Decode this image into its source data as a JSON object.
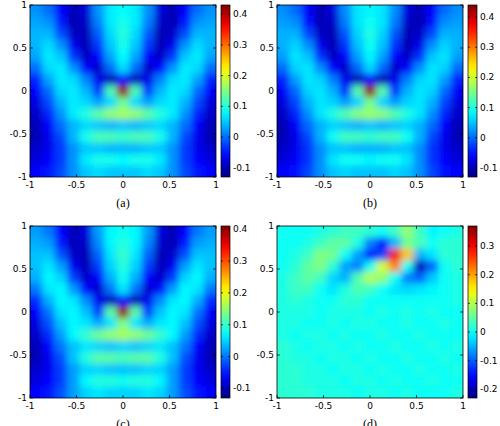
{
  "chart_data": [
    {
      "type": "heatmap",
      "title": "(a)",
      "xlim": [
        -1,
        1
      ],
      "ylim": [
        -1,
        1
      ],
      "xticks": [
        -1,
        -0.5,
        0,
        0.5,
        1
      ],
      "yticks": [
        -1,
        -0.5,
        0,
        0.5,
        1
      ],
      "colorbar": {
        "lim": [
          -0.13,
          0.43
        ],
        "ticks": [
          -0.1,
          0,
          0.1,
          0.2,
          0.3,
          0.4
        ]
      },
      "cells": [
        [
          0.02,
          0.0,
          -0.06,
          -0.1,
          -0.08,
          0.02,
          0.07,
          0.08,
          0.07,
          0.02,
          -0.08,
          -0.1,
          -0.06,
          0.0,
          0.02
        ],
        [
          0.03,
          0.02,
          -0.05,
          -0.1,
          -0.09,
          0.01,
          0.07,
          0.09,
          0.07,
          0.01,
          -0.09,
          -0.1,
          -0.05,
          0.02,
          0.03
        ],
        [
          0.04,
          0.04,
          -0.02,
          -0.09,
          -0.1,
          -0.01,
          0.06,
          0.1,
          0.06,
          -0.01,
          -0.1,
          -0.09,
          -0.02,
          0.04,
          0.04
        ],
        [
          0.04,
          0.06,
          0.02,
          -0.07,
          -0.1,
          -0.03,
          0.05,
          0.09,
          0.05,
          -0.03,
          -0.1,
          -0.07,
          0.02,
          0.06,
          0.04
        ],
        [
          0.03,
          0.07,
          0.05,
          -0.03,
          -0.09,
          -0.06,
          0.03,
          0.08,
          0.03,
          -0.06,
          -0.09,
          -0.03,
          0.05,
          0.07,
          0.03
        ],
        [
          0.0,
          0.06,
          0.07,
          0.02,
          -0.06,
          -0.09,
          0.0,
          0.06,
          0.0,
          -0.09,
          -0.06,
          0.02,
          0.07,
          0.06,
          0.0
        ],
        [
          -0.04,
          0.03,
          0.07,
          0.06,
          0.01,
          -0.07,
          -0.1,
          -0.06,
          -0.1,
          -0.07,
          0.01,
          0.06,
          0.07,
          0.03,
          -0.04
        ],
        [
          -0.06,
          0.0,
          0.06,
          0.07,
          0.04,
          -0.03,
          0.12,
          0.42,
          0.12,
          -0.03,
          0.04,
          0.07,
          0.06,
          0.0,
          -0.06
        ],
        [
          -0.08,
          -0.02,
          0.04,
          0.07,
          0.06,
          0.03,
          0.06,
          0.14,
          0.06,
          0.03,
          0.06,
          0.07,
          0.04,
          -0.02,
          -0.08
        ],
        [
          -0.09,
          -0.04,
          0.02,
          0.07,
          0.1,
          0.13,
          0.16,
          0.17,
          0.16,
          0.13,
          0.1,
          0.07,
          0.02,
          -0.04,
          -0.09
        ],
        [
          -0.1,
          -0.06,
          0.0,
          0.04,
          0.06,
          0.05,
          0.04,
          0.05,
          0.04,
          0.05,
          0.06,
          0.04,
          0.0,
          -0.06,
          -0.1
        ],
        [
          -0.1,
          -0.07,
          -0.02,
          0.04,
          0.09,
          0.12,
          0.12,
          0.11,
          0.12,
          0.12,
          0.09,
          0.04,
          -0.02,
          -0.07,
          -0.1
        ],
        [
          -0.09,
          -0.07,
          -0.03,
          0.02,
          0.05,
          0.05,
          0.04,
          0.04,
          0.04,
          0.05,
          0.05,
          0.02,
          -0.03,
          -0.07,
          -0.09
        ],
        [
          -0.08,
          -0.06,
          -0.03,
          0.02,
          0.07,
          0.09,
          0.09,
          0.08,
          0.09,
          0.09,
          0.07,
          0.02,
          -0.03,
          -0.06,
          -0.08
        ],
        [
          -0.06,
          -0.05,
          -0.02,
          0.02,
          0.05,
          0.06,
          0.05,
          0.05,
          0.05,
          0.06,
          0.05,
          0.02,
          -0.02,
          -0.05,
          -0.06
        ]
      ]
    },
    {
      "type": "heatmap",
      "title": "(b)",
      "xlim": [
        -1,
        1
      ],
      "ylim": [
        -1,
        1
      ],
      "xticks": [
        -1,
        -0.5,
        0,
        0.5,
        1
      ],
      "yticks": [
        -1,
        -0.5,
        0,
        0.5,
        1
      ],
      "colorbar": {
        "lim": [
          -0.13,
          0.44
        ],
        "ticks": [
          -0.1,
          0,
          0.1,
          0.2,
          0.3,
          0.4
        ]
      },
      "cells": [
        [
          0.02,
          0.0,
          -0.06,
          -0.1,
          -0.08,
          0.02,
          0.07,
          0.08,
          0.07,
          0.02,
          -0.08,
          -0.1,
          -0.06,
          0.0,
          0.02
        ],
        [
          0.03,
          0.02,
          -0.05,
          -0.1,
          -0.09,
          0.01,
          0.07,
          0.09,
          0.07,
          0.01,
          -0.09,
          -0.1,
          -0.05,
          0.02,
          0.03
        ],
        [
          0.04,
          0.04,
          -0.02,
          -0.09,
          -0.1,
          -0.01,
          0.06,
          0.1,
          0.06,
          -0.01,
          -0.1,
          -0.09,
          -0.02,
          0.04,
          0.04
        ],
        [
          0.04,
          0.06,
          0.02,
          -0.07,
          -0.1,
          -0.03,
          0.05,
          0.09,
          0.05,
          -0.03,
          -0.1,
          -0.07,
          0.02,
          0.06,
          0.04
        ],
        [
          0.03,
          0.07,
          0.05,
          -0.03,
          -0.09,
          -0.06,
          0.03,
          0.08,
          0.03,
          -0.06,
          -0.09,
          -0.03,
          0.05,
          0.07,
          0.03
        ],
        [
          0.0,
          0.06,
          0.07,
          0.02,
          -0.06,
          -0.09,
          0.0,
          0.06,
          0.0,
          -0.09,
          -0.06,
          0.02,
          0.07,
          0.06,
          0.0
        ],
        [
          -0.04,
          0.03,
          0.07,
          0.06,
          0.01,
          -0.07,
          -0.1,
          -0.06,
          -0.1,
          -0.07,
          0.01,
          0.06,
          0.07,
          0.03,
          -0.04
        ],
        [
          -0.06,
          0.0,
          0.06,
          0.07,
          0.04,
          -0.03,
          0.13,
          0.43,
          0.13,
          -0.03,
          0.04,
          0.07,
          0.06,
          0.0,
          -0.06
        ],
        [
          -0.08,
          -0.02,
          0.04,
          0.07,
          0.06,
          0.03,
          0.06,
          0.15,
          0.06,
          0.03,
          0.06,
          0.07,
          0.04,
          -0.02,
          -0.08
        ],
        [
          -0.09,
          -0.04,
          0.02,
          0.07,
          0.1,
          0.13,
          0.16,
          0.17,
          0.16,
          0.13,
          0.1,
          0.07,
          0.02,
          -0.04,
          -0.09
        ],
        [
          -0.1,
          -0.06,
          0.0,
          0.04,
          0.06,
          0.05,
          0.04,
          0.05,
          0.04,
          0.05,
          0.06,
          0.04,
          0.0,
          -0.06,
          -0.1
        ],
        [
          -0.1,
          -0.07,
          -0.02,
          0.04,
          0.09,
          0.12,
          0.12,
          0.11,
          0.12,
          0.12,
          0.09,
          0.04,
          -0.02,
          -0.07,
          -0.1
        ],
        [
          -0.09,
          -0.07,
          -0.03,
          0.02,
          0.05,
          0.05,
          0.04,
          0.04,
          0.04,
          0.05,
          0.05,
          0.02,
          -0.03,
          -0.07,
          -0.09
        ],
        [
          -0.08,
          -0.06,
          -0.03,
          0.02,
          0.07,
          0.09,
          0.09,
          0.08,
          0.09,
          0.09,
          0.07,
          0.02,
          -0.03,
          -0.06,
          -0.08
        ],
        [
          -0.06,
          -0.05,
          -0.02,
          0.02,
          0.05,
          0.06,
          0.05,
          0.05,
          0.05,
          0.06,
          0.05,
          0.02,
          -0.02,
          -0.05,
          -0.06
        ]
      ]
    },
    {
      "type": "heatmap",
      "title": "(c)",
      "xlim": [
        -1,
        1
      ],
      "ylim": [
        -1,
        1
      ],
      "xticks": [
        -1,
        -0.5,
        0,
        0.5,
        1
      ],
      "yticks": [
        -1,
        -0.5,
        0,
        0.5,
        1
      ],
      "colorbar": {
        "lim": [
          -0.13,
          0.41
        ],
        "ticks": [
          -0.1,
          0,
          0.1,
          0.2,
          0.3,
          0.4
        ]
      },
      "cells": [
        [
          0.02,
          0.0,
          -0.06,
          -0.1,
          -0.08,
          0.02,
          0.07,
          0.08,
          0.07,
          0.02,
          -0.08,
          -0.1,
          -0.06,
          0.0,
          0.02
        ],
        [
          0.03,
          0.02,
          -0.05,
          -0.1,
          -0.09,
          0.01,
          0.07,
          0.09,
          0.07,
          0.01,
          -0.09,
          -0.1,
          -0.05,
          0.02,
          0.03
        ],
        [
          0.04,
          0.04,
          -0.02,
          -0.09,
          -0.1,
          -0.01,
          0.06,
          0.1,
          0.06,
          -0.01,
          -0.1,
          -0.09,
          -0.02,
          0.04,
          0.04
        ],
        [
          0.04,
          0.06,
          0.02,
          -0.07,
          -0.1,
          -0.03,
          0.05,
          0.09,
          0.05,
          -0.03,
          -0.1,
          -0.07,
          0.02,
          0.06,
          0.04
        ],
        [
          0.03,
          0.07,
          0.05,
          -0.03,
          -0.09,
          -0.06,
          0.03,
          0.08,
          0.03,
          -0.06,
          -0.09,
          -0.03,
          0.05,
          0.07,
          0.03
        ],
        [
          0.0,
          0.06,
          0.07,
          0.02,
          -0.06,
          -0.09,
          0.0,
          0.06,
          0.0,
          -0.09,
          -0.06,
          0.02,
          0.07,
          0.06,
          0.0
        ],
        [
          -0.04,
          0.03,
          0.07,
          0.06,
          0.01,
          -0.07,
          -0.1,
          -0.06,
          -0.1,
          -0.07,
          0.01,
          0.06,
          0.07,
          0.03,
          -0.04
        ],
        [
          -0.06,
          0.0,
          0.06,
          0.07,
          0.04,
          -0.03,
          0.12,
          0.4,
          0.12,
          -0.03,
          0.04,
          0.07,
          0.06,
          0.0,
          -0.06
        ],
        [
          -0.08,
          -0.02,
          0.04,
          0.07,
          0.06,
          0.03,
          0.06,
          0.14,
          0.06,
          0.03,
          0.06,
          0.07,
          0.04,
          -0.02,
          -0.08
        ],
        [
          -0.09,
          -0.04,
          0.02,
          0.07,
          0.1,
          0.13,
          0.15,
          0.16,
          0.15,
          0.13,
          0.1,
          0.07,
          0.02,
          -0.04,
          -0.09
        ],
        [
          -0.1,
          -0.06,
          0.0,
          0.04,
          0.06,
          0.05,
          0.04,
          0.05,
          0.04,
          0.05,
          0.06,
          0.04,
          0.0,
          -0.06,
          -0.1
        ],
        [
          -0.1,
          -0.07,
          -0.02,
          0.04,
          0.09,
          0.12,
          0.12,
          0.11,
          0.12,
          0.12,
          0.09,
          0.04,
          -0.02,
          -0.07,
          -0.1
        ],
        [
          -0.09,
          -0.07,
          -0.03,
          0.02,
          0.05,
          0.05,
          0.04,
          0.04,
          0.04,
          0.05,
          0.05,
          0.02,
          -0.03,
          -0.07,
          -0.09
        ],
        [
          -0.08,
          -0.06,
          -0.03,
          0.02,
          0.07,
          0.09,
          0.09,
          0.08,
          0.09,
          0.09,
          0.07,
          0.02,
          -0.03,
          -0.06,
          -0.08
        ],
        [
          -0.06,
          -0.05,
          -0.02,
          0.02,
          0.05,
          0.06,
          0.05,
          0.05,
          0.05,
          0.06,
          0.05,
          0.02,
          -0.02,
          -0.05,
          -0.06
        ]
      ]
    },
    {
      "type": "heatmap",
      "title": "(d)",
      "xlim": [
        -1,
        1
      ],
      "ylim": [
        -1,
        1
      ],
      "xticks": [
        -1,
        -0.5,
        0,
        0.5,
        1
      ],
      "yticks": [
        -1,
        -0.5,
        0,
        0.5,
        1
      ],
      "colorbar": {
        "lim": [
          -0.23,
          0.37
        ],
        "ticks": [
          -0.2,
          -0.1,
          0,
          0.1,
          0.2,
          0.3
        ]
      },
      "cells": [
        [
          0.0,
          0.0,
          0.0,
          0.01,
          0.02,
          0.03,
          0.03,
          0.02,
          0.0,
          0.03,
          0.08,
          0.03,
          -0.01,
          0.0,
          0.01
        ],
        [
          0.0,
          0.0,
          0.01,
          0.03,
          0.05,
          0.05,
          0.01,
          -0.08,
          -0.15,
          -0.05,
          0.06,
          0.04,
          0.0,
          0.02,
          0.02
        ],
        [
          0.0,
          0.01,
          0.03,
          0.07,
          0.06,
          0.0,
          -0.06,
          -0.15,
          -0.12,
          0.3,
          0.18,
          -0.05,
          -0.02,
          0.02,
          0.02
        ],
        [
          0.0,
          0.02,
          0.05,
          0.07,
          0.02,
          -0.06,
          -0.08,
          0.0,
          0.12,
          0.22,
          0.0,
          -0.2,
          -0.1,
          0.0,
          0.02
        ],
        [
          0.01,
          0.03,
          0.05,
          0.03,
          -0.03,
          -0.05,
          0.04,
          0.1,
          0.08,
          0.0,
          -0.08,
          -0.1,
          -0.04,
          0.0,
          0.01
        ],
        [
          0.01,
          0.03,
          0.03,
          0.0,
          -0.02,
          0.01,
          0.04,
          0.03,
          0.0,
          -0.02,
          -0.03,
          -0.02,
          -0.01,
          0.0,
          0.01
        ],
        [
          0.01,
          0.02,
          0.01,
          0.0,
          0.0,
          0.02,
          0.02,
          0.0,
          0.0,
          0.0,
          0.0,
          0.0,
          0.0,
          0.0,
          0.01
        ],
        [
          0.01,
          0.01,
          0.01,
          0.0,
          0.01,
          0.01,
          0.01,
          0.0,
          0.01,
          0.0,
          0.01,
          0.0,
          0.01,
          0.0,
          0.0
        ],
        [
          0.01,
          0.01,
          0.0,
          0.0,
          0.01,
          0.0,
          0.01,
          0.01,
          0.0,
          0.0,
          0.01,
          0.0,
          0.0,
          0.01,
          0.0
        ],
        [
          0.01,
          0.0,
          0.01,
          0.01,
          0.0,
          0.01,
          0.0,
          0.0,
          0.01,
          0.0,
          0.0,
          0.01,
          0.0,
          0.0,
          0.0
        ],
        [
          0.02,
          0.01,
          0.0,
          0.01,
          0.01,
          0.0,
          0.01,
          0.0,
          0.0,
          0.01,
          0.0,
          0.0,
          0.01,
          0.0,
          0.01
        ],
        [
          0.02,
          0.01,
          0.01,
          0.0,
          0.01,
          0.01,
          0.0,
          0.01,
          0.0,
          0.0,
          0.01,
          0.0,
          0.0,
          0.01,
          0.0
        ],
        [
          0.02,
          0.02,
          0.01,
          0.01,
          0.0,
          0.01,
          0.01,
          0.0,
          0.01,
          0.0,
          0.0,
          0.01,
          0.0,
          0.0,
          0.01
        ],
        [
          0.02,
          0.02,
          0.01,
          0.01,
          0.01,
          0.0,
          0.01,
          0.01,
          0.0,
          0.01,
          0.0,
          0.0,
          0.01,
          0.0,
          0.0
        ],
        [
          0.02,
          0.02,
          0.02,
          0.01,
          0.01,
          0.01,
          0.0,
          0.01,
          0.01,
          0.0,
          0.01,
          0.0,
          0.0,
          0.0,
          0.01
        ]
      ]
    }
  ]
}
